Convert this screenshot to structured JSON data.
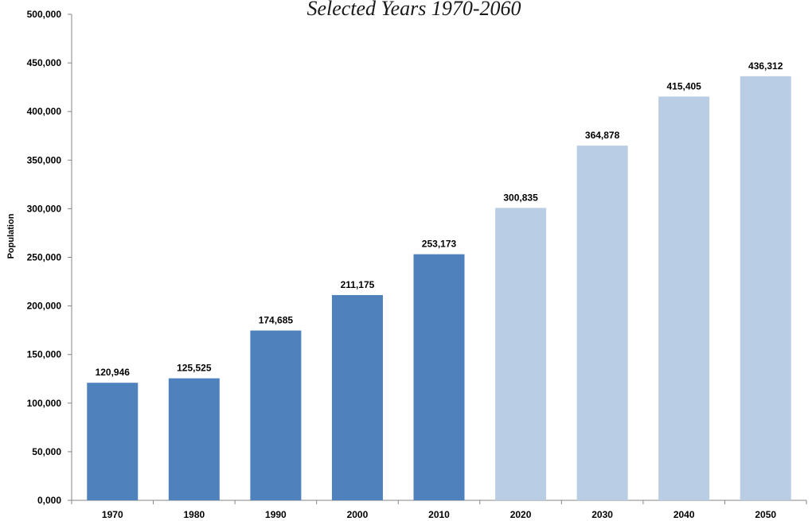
{
  "title": "Selected Years 1970-2060",
  "chart_data": {
    "type": "bar",
    "title": "Selected Years 1970-2060",
    "xlabel": "",
    "ylabel": "Population",
    "ylim": [
      0,
      500000
    ],
    "y_ticks": [
      "0,000",
      "50,000",
      "100,000",
      "150,000",
      "200,000",
      "250,000",
      "300,000",
      "350,000",
      "400,000",
      "450,000",
      "500,000"
    ],
    "categories": [
      "1970",
      "1980",
      "1990",
      "2000",
      "2010",
      "2020",
      "2030",
      "2040",
      "2050"
    ],
    "values": [
      120946,
      125525,
      174685,
      211175,
      253173,
      300835,
      364878,
      415405,
      436312
    ],
    "value_labels": [
      "120,946",
      "125,525",
      "174,685",
      "211,175",
      "253,173",
      "300,835",
      "364,878",
      "415,405",
      "436,312"
    ],
    "bar_colors": [
      "#4f81bd",
      "#4f81bd",
      "#4f81bd",
      "#4f81bd",
      "#4f81bd",
      "#b9cde5",
      "#b9cde5",
      "#b9cde5",
      "#b9cde5"
    ],
    "grid": false,
    "legend": "none"
  }
}
